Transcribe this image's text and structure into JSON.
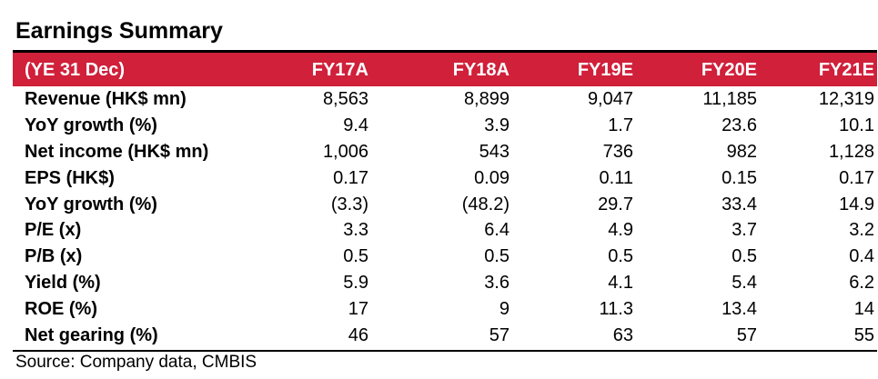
{
  "title": "Earnings Summary",
  "table": {
    "header": {
      "label": "(YE 31 Dec)",
      "columns": [
        "FY17A",
        "FY18A",
        "FY19E",
        "FY20E",
        "FY21E"
      ]
    },
    "rows": [
      {
        "label": "Revenue (HK$ mn)",
        "values": [
          "8,563",
          "8,899",
          "9,047",
          "11,185",
          "12,319"
        ]
      },
      {
        "label": "YoY growth (%)",
        "values": [
          "9.4",
          "3.9",
          "1.7",
          "23.6",
          "10.1"
        ]
      },
      {
        "label": "Net income (HK$ mn)",
        "values": [
          "1,006",
          "543",
          "736",
          "982",
          "1,128"
        ]
      },
      {
        "label": "EPS (HK$)",
        "values": [
          "0.17",
          "0.09",
          "0.11",
          "0.15",
          "0.17"
        ]
      },
      {
        "label": "YoY growth (%)",
        "values": [
          "(3.3)",
          "(48.2)",
          "29.7",
          "33.4",
          "14.9"
        ]
      },
      {
        "label": "P/E (x)",
        "values": [
          "3.3",
          "6.4",
          "4.9",
          "3.7",
          "3.2"
        ]
      },
      {
        "label": "P/B (x)",
        "values": [
          "0.5",
          "0.5",
          "0.5",
          "0.5",
          "0.4"
        ]
      },
      {
        "label": "Yield (%)",
        "values": [
          "5.9",
          "3.6",
          "4.1",
          "5.4",
          "6.2"
        ]
      },
      {
        "label": "ROE (%)",
        "values": [
          "17",
          "9",
          "11.3",
          "13.4",
          "14"
        ]
      },
      {
        "label": "Net gearing (%)",
        "values": [
          "46",
          "57",
          "63",
          "57",
          "55"
        ]
      }
    ]
  },
  "source": "Source: Company data, CMBIS",
  "colors": {
    "header_background": "#d0203a",
    "header_text": "#ffffff"
  }
}
